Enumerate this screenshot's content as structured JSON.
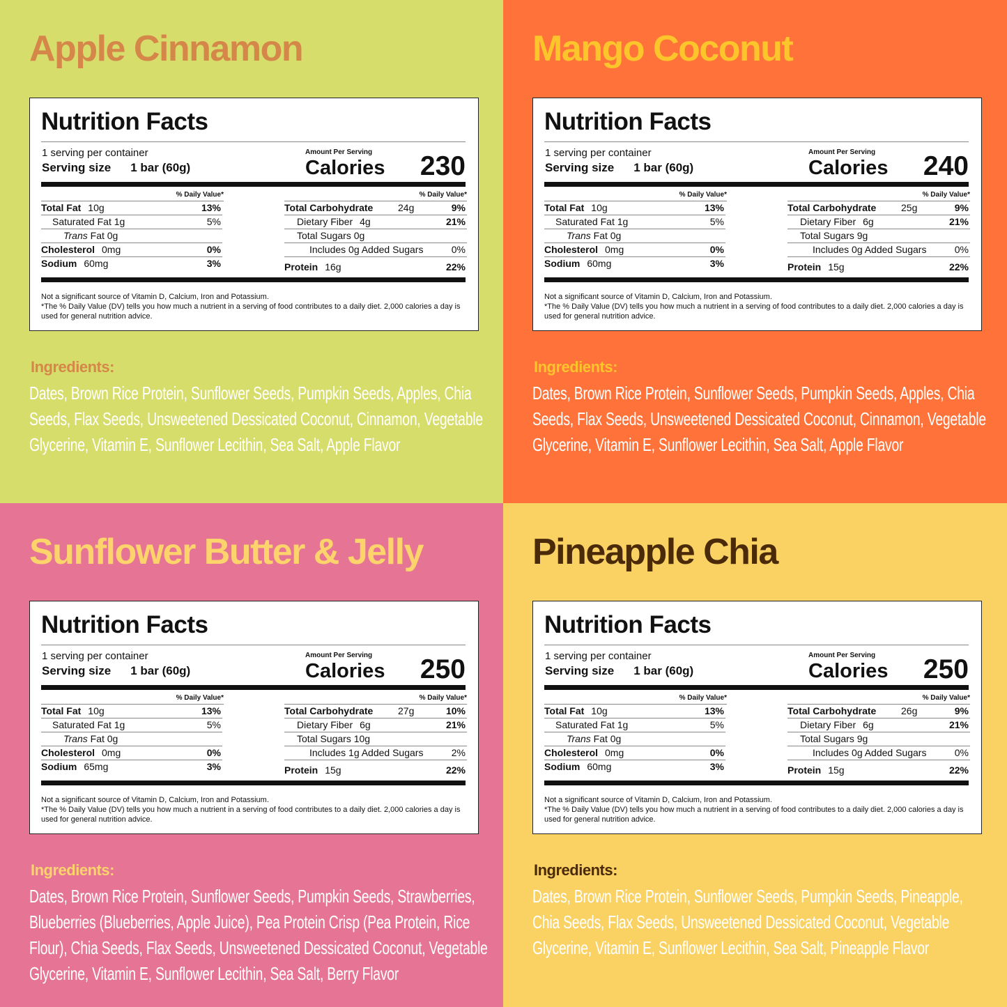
{
  "panels": [
    {
      "flavor": "Apple Cinnamon",
      "bg": "#d6dd6b",
      "title_color": "#d5874a",
      "ing_color": "#d5874a",
      "calories": "230",
      "left_rows": [
        {
          "label": "Total Fat",
          "amount": "10g",
          "dv": "13%",
          "bold": true,
          "indent": 0
        },
        {
          "label": "Saturated Fat 1g",
          "amount": "",
          "dv": "5%",
          "bold": false,
          "indent": 1
        },
        {
          "italic": "Trans",
          "label": " Fat 0g",
          "amount": "",
          "dv": "",
          "bold": false,
          "indent": 2
        },
        {
          "label": "Cholesterol",
          "amount": "0mg",
          "dv": "0%",
          "bold": true,
          "indent": 0
        },
        {
          "label": "Sodium",
          "amount": "60mg",
          "dv": "3%",
          "bold": true,
          "indent": 0
        }
      ],
      "right_rows": [
        {
          "label": "Total Carbohydrate",
          "amount": "24g",
          "dv": "9%",
          "bold": true,
          "indent": 0,
          "col": true
        },
        {
          "label": "Dietary Fiber",
          "amount": "4g",
          "dv": "21%",
          "bold": false,
          "indent": 1,
          "dvbold": true
        },
        {
          "label": "Total Sugars 0g",
          "amount": "",
          "dv": "",
          "bold": false,
          "indent": 1
        },
        {
          "label": "Includes 0g Added Sugars",
          "amount": "",
          "dv": "0%",
          "bold": false,
          "indent": 2
        },
        {
          "label": "Protein",
          "amount": "16g",
          "dv": "22%",
          "bold": true,
          "indent": 0
        }
      ],
      "ingredients": "Dates, Brown Rice Protein, Sunflower Seeds, Pumpkin Seeds, Apples, Chia Seeds, Flax Seeds, Unsweetened Dessicated Coconut, Cinnamon, Vegetable Glycerine, Vitamin E, Sunflower Lecithin, Sea Salt, Apple Flavor"
    },
    {
      "flavor": "Mango Coconut",
      "bg": "#ff733a",
      "title_color": "#fcc52b",
      "ing_color": "#fcc52b",
      "calories": "240",
      "left_rows": [
        {
          "label": "Total Fat",
          "amount": "10g",
          "dv": "13%",
          "bold": true,
          "indent": 0
        },
        {
          "label": "Saturated Fat 1g",
          "amount": "",
          "dv": "5%",
          "bold": false,
          "indent": 1
        },
        {
          "italic": "Trans",
          "label": " Fat 0g",
          "amount": "",
          "dv": "",
          "bold": false,
          "indent": 2
        },
        {
          "label": "Cholesterol",
          "amount": "0mg",
          "dv": "0%",
          "bold": true,
          "indent": 0
        },
        {
          "label": "Sodium",
          "amount": "60mg",
          "dv": "3%",
          "bold": true,
          "indent": 0
        }
      ],
      "right_rows": [
        {
          "label": "Total Carbohydrate",
          "amount": "25g",
          "dv": "9%",
          "bold": true,
          "indent": 0,
          "col": true
        },
        {
          "label": "Dietary Fiber",
          "amount": "6g",
          "dv": "21%",
          "bold": false,
          "indent": 1,
          "dvbold": true
        },
        {
          "label": "Total Sugars 9g",
          "amount": "",
          "dv": "",
          "bold": false,
          "indent": 1
        },
        {
          "label": "Includes 0g Added Sugars",
          "amount": "",
          "dv": "0%",
          "bold": false,
          "indent": 2
        },
        {
          "label": "Protein",
          "amount": "15g",
          "dv": "22%",
          "bold": true,
          "indent": 0
        }
      ],
      "ingredients": "Dates, Brown Rice Protein, Sunflower Seeds, Pumpkin Seeds, Apples, Chia Seeds, Flax Seeds, Unsweetened Dessicated Coconut, Cinnamon, Vegetable Glycerine, Vitamin E, Sunflower Lecithin, Sea Salt, Apple Flavor"
    },
    {
      "flavor": "Sunflower Butter & Jelly",
      "bg": "#e67595",
      "title_color": "#fcd46b",
      "ing_color": "#fcd46b",
      "calories": "250",
      "left_rows": [
        {
          "label": "Total Fat",
          "amount": "10g",
          "dv": "13%",
          "bold": true,
          "indent": 0
        },
        {
          "label": "Saturated Fat 1g",
          "amount": "",
          "dv": "5%",
          "bold": false,
          "indent": 1
        },
        {
          "italic": "Trans",
          "label": " Fat 0g",
          "amount": "",
          "dv": "",
          "bold": false,
          "indent": 2
        },
        {
          "label": "Cholesterol",
          "amount": "0mg",
          "dv": "0%",
          "bold": true,
          "indent": 0
        },
        {
          "label": "Sodium",
          "amount": "65mg",
          "dv": "3%",
          "bold": true,
          "indent": 0
        }
      ],
      "right_rows": [
        {
          "label": "Total Carbohydrate",
          "amount": "27g",
          "dv": "10%",
          "bold": true,
          "indent": 0,
          "col": true
        },
        {
          "label": "Dietary Fiber",
          "amount": "6g",
          "dv": "21%",
          "bold": false,
          "indent": 1,
          "dvbold": true
        },
        {
          "label": "Total Sugars 10g",
          "amount": "",
          "dv": "",
          "bold": false,
          "indent": 1
        },
        {
          "label": "Includes 1g Added Sugars",
          "amount": "",
          "dv": "2%",
          "bold": false,
          "indent": 2
        },
        {
          "label": "Protein",
          "amount": "15g",
          "dv": "22%",
          "bold": true,
          "indent": 0
        }
      ],
      "ingredients": "Dates, Brown Rice Protein, Sunflower Seeds, Pumpkin Seeds, Strawberries, Blueberries (Blueberries, Apple Juice), Pea Protein Crisp (Pea Protein, Rice Flour),  Chia Seeds, Flax Seeds, Unsweetened Dessicated Coconut, Vegetable Glycerine, Vitamin E, Sunflower Lecithin, Sea Salt, Berry Flavor"
    },
    {
      "flavor": "Pineapple Chia",
      "bg": "#fad264",
      "title_color": "#4a2a08",
      "ing_color": "#4a2a08",
      "calories": "250",
      "left_rows": [
        {
          "label": "Total Fat",
          "amount": "10g",
          "dv": "13%",
          "bold": true,
          "indent": 0
        },
        {
          "label": "Saturated Fat 1g",
          "amount": "",
          "dv": "5%",
          "bold": false,
          "indent": 1
        },
        {
          "italic": "Trans",
          "label": " Fat 0g",
          "amount": "",
          "dv": "",
          "bold": false,
          "indent": 2
        },
        {
          "label": "Cholesterol",
          "amount": "0mg",
          "dv": "0%",
          "bold": true,
          "indent": 0
        },
        {
          "label": "Sodium",
          "amount": "60mg",
          "dv": "3%",
          "bold": true,
          "indent": 0
        }
      ],
      "right_rows": [
        {
          "label": "Total Carbohydrate",
          "amount": "26g",
          "dv": "9%",
          "bold": true,
          "indent": 0,
          "col": true
        },
        {
          "label": "Dietary Fiber",
          "amount": "6g",
          "dv": "21%",
          "bold": false,
          "indent": 1,
          "dvbold": true
        },
        {
          "label": "Total Sugars 9g",
          "amount": "",
          "dv": "",
          "bold": false,
          "indent": 1
        },
        {
          "label": "Includes 0g Added Sugars",
          "amount": "",
          "dv": "0%",
          "bold": false,
          "indent": 2
        },
        {
          "label": "Protein",
          "amount": "15g",
          "dv": "22%",
          "bold": true,
          "indent": 0
        }
      ],
      "ingredients": "Dates, Brown Rice Protein, Sunflower Seeds, Pumpkin Seeds, Pineapple, Chia Seeds, Flax Seeds, Unsweetened Dessicated Coconut, Vegetable Glycerine, Vitamin E, Sunflower Lecithin, Sea Salt, Pineapple Flavor"
    }
  ],
  "common": {
    "nutrition_facts": "Nutrition Facts",
    "servings": "1 serving per container",
    "serving_size_label": "Serving size",
    "serving_size_value": "1 bar (60g)",
    "amount_per_serving": "Amount Per Serving",
    "calories_label": "Calories",
    "daily_value": "% Daily Value*",
    "footnote_1": "Not a significant source of Vitamin D, Calcium, Iron and Potassium.",
    "footnote_2": "*The % Daily Value (DV) tells you how much a nutrient in a serving of food contributes to a daily diet. 2,000 calories a day is used for general nutrition advice.",
    "ingredients_heading": "Ingredients:"
  }
}
